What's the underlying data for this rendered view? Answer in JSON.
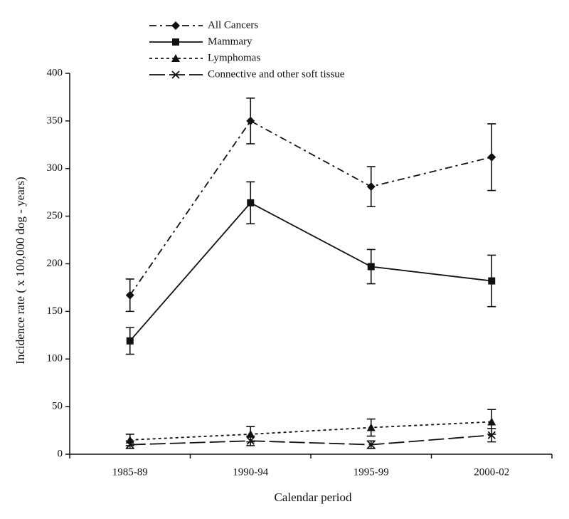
{
  "chart_data": {
    "type": "line",
    "x_label": "Calendar period",
    "y_label": "Incidence rate ( x 100,000 dog - years)",
    "categories": [
      "1985-89",
      "1990-94",
      "1995-99",
      "2000-02"
    ],
    "ylim": [
      0,
      400
    ],
    "yticks": [
      0,
      50,
      100,
      150,
      200,
      250,
      300,
      350,
      400
    ],
    "legend": "top",
    "series": [
      {
        "name": "All  Cancers",
        "color": "#111111",
        "marker": "diamond",
        "line_style": "dashdot",
        "values": [
          167,
          350,
          281,
          312
        ],
        "errors": [
          17,
          24,
          21,
          35
        ]
      },
      {
        "name": "Mammary",
        "color": "#111111",
        "marker": "square",
        "line_style": "solid",
        "values": [
          119,
          264,
          197,
          182
        ],
        "errors": [
          14,
          22,
          18,
          27
        ]
      },
      {
        "name": "Lymphomas",
        "color": "#111111",
        "marker": "triangle",
        "line_style": "dotted",
        "values": [
          15,
          21,
          28,
          34
        ],
        "errors": [
          6,
          8,
          9,
          13
        ]
      },
      {
        "name": "Connective and other soft tissue",
        "color": "#111111",
        "marker": "x",
        "line_style": "longdash",
        "values": [
          10,
          14,
          10,
          20
        ],
        "errors": [
          4,
          5,
          4,
          7
        ]
      }
    ]
  }
}
